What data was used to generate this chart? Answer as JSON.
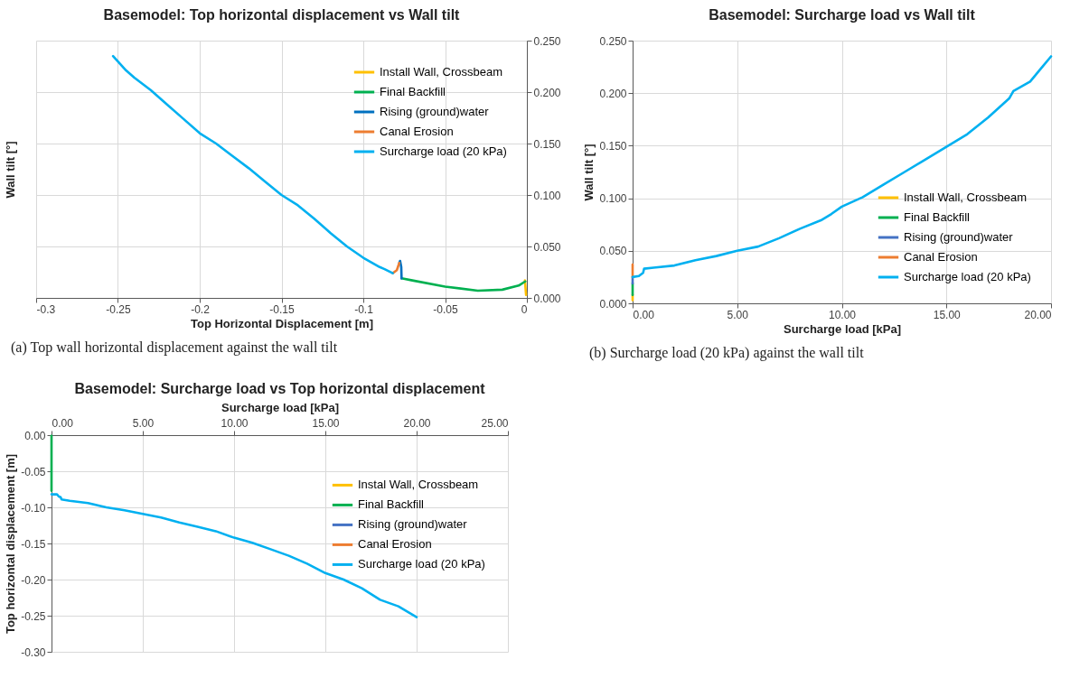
{
  "chart_data": [
    {
      "type": "line",
      "title": "Basemodel: Top horizontal displacement vs Wall tilt",
      "xlabel": "Top Horizontal Displacement  [m]",
      "y2label": "Wall tilt [°]",
      "xlim": [
        -0.3,
        0
      ],
      "xticks": [
        -0.3,
        -0.25,
        -0.2,
        -0.15,
        -0.1,
        -0.05,
        0
      ],
      "y2lim": [
        0,
        0.25
      ],
      "y2ticks": [
        {
          "value": 0,
          "label": "0.000"
        },
        {
          "value": 0.05,
          "label": "0.050"
        },
        {
          "value": 0.1,
          "label": "0.100"
        },
        {
          "value": 0.15,
          "label": "0.150"
        },
        {
          "value": 0.2,
          "label": "0.200"
        },
        {
          "value": 0.25,
          "label": "0.250"
        }
      ],
      "grid": true,
      "legend": "top right",
      "annotations": [
        "(a) Top wall horizontal displacement against the wall tilt"
      ],
      "series": [
        {
          "name": "Install Wall, Crossbeam",
          "color": "#ffc000",
          "axis": "y2",
          "x": [
            -0.0005,
            -0.0012,
            -0.001
          ],
          "values": [
            0.003,
            0.017,
            0.016
          ]
        },
        {
          "name": "Final Backfill",
          "color": "#00b050",
          "axis": "y2",
          "x": [
            -0.001,
            -0.005,
            -0.015,
            -0.03,
            -0.05,
            -0.07,
            -0.0766
          ],
          "values": [
            0.016,
            0.012,
            0.008,
            0.007,
            0.011,
            0.017,
            0.019
          ]
        },
        {
          "name": "Rising (ground)water",
          "color": "#0070c0",
          "axis": "y2",
          "x": [
            -0.0766,
            -0.0768,
            -0.0775,
            -0.078
          ],
          "values": [
            0.019,
            0.03,
            0.036,
            0.034
          ]
        },
        {
          "name": "Canal Erosion",
          "color": "#ed7d31",
          "axis": "y2",
          "x": [
            -0.078,
            -0.0795,
            -0.082
          ],
          "values": [
            0.034,
            0.027,
            0.024
          ]
        },
        {
          "name": "Surcharge load (20 kPa)",
          "color": "#00b0f0",
          "axis": "y2",
          "x": [
            -0.082,
            -0.087,
            -0.09,
            -0.1,
            -0.11,
            -0.12,
            -0.13,
            -0.14,
            -0.15,
            -0.16,
            -0.17,
            -0.18,
            -0.19,
            -0.2,
            -0.21,
            -0.22,
            -0.23,
            -0.24,
            -0.245,
            -0.253
          ],
          "values": [
            0.024,
            0.028,
            0.03,
            0.039,
            0.05,
            0.063,
            0.077,
            0.09,
            0.1,
            0.113,
            0.126,
            0.138,
            0.15,
            0.16,
            0.174,
            0.188,
            0.202,
            0.214,
            0.221,
            0.235
          ]
        }
      ]
    },
    {
      "type": "line",
      "title": "Basemodel: Surcharge load vs Wall tilt",
      "xlabel": "Surcharge load [kPa]",
      "ylabel": "Wall tilt [°]",
      "xlim": [
        0,
        20
      ],
      "xticks": [
        {
          "value": 0,
          "label": "0.00"
        },
        {
          "value": 5,
          "label": "5.00"
        },
        {
          "value": 10,
          "label": "10.00"
        },
        {
          "value": 15,
          "label": "15.00"
        },
        {
          "value": 20,
          "label": "20.00"
        }
      ],
      "ylim": [
        0,
        0.25
      ],
      "yticks": [
        {
          "value": 0,
          "label": "0.000"
        },
        {
          "value": 0.05,
          "label": "0.050"
        },
        {
          "value": 0.1,
          "label": "0.100"
        },
        {
          "value": 0.15,
          "label": "0.150"
        },
        {
          "value": 0.2,
          "label": "0.200"
        },
        {
          "value": 0.25,
          "label": "0.250"
        }
      ],
      "grid": true,
      "legend": "bottom right",
      "annotations": [
        "(b) Surcharge load (20 kPa) against the wall tilt"
      ],
      "series": [
        {
          "name": "Install Wall, Crossbeam",
          "color": "#ffc000",
          "x": [
            0,
            0
          ],
          "values": [
            0.003,
            0.008
          ]
        },
        {
          "name": "Final Backfill",
          "color": "#00b050",
          "x": [
            0,
            0
          ],
          "values": [
            0.008,
            0.019
          ]
        },
        {
          "name": "Rising (ground)water",
          "color": "#4472c4",
          "x": [
            0,
            0
          ],
          "values": [
            0.019,
            0.025
          ]
        },
        {
          "name": "Canal Erosion",
          "color": "#ed7d31",
          "x": [
            0,
            0
          ],
          "values": [
            0.025,
            0.037
          ]
        },
        {
          "name": "Surcharge load (20 kPa)",
          "color": "#00b0f0",
          "x": [
            0,
            0.3,
            0.5,
            0.55,
            1,
            2,
            3,
            4,
            5,
            6,
            7,
            8,
            9,
            9.5,
            10,
            11,
            12,
            13,
            14,
            15,
            16,
            17,
            18,
            18.2,
            19,
            19.5,
            20
          ],
          "values": [
            0.025,
            0.026,
            0.029,
            0.033,
            0.034,
            0.036,
            0.041,
            0.045,
            0.05,
            0.054,
            0.062,
            0.071,
            0.079,
            0.085,
            0.092,
            0.101,
            0.113,
            0.125,
            0.137,
            0.149,
            0.161,
            0.177,
            0.195,
            0.202,
            0.211,
            0.223,
            0.235
          ]
        }
      ]
    },
    {
      "type": "line",
      "title": "Basemodel: Surcharge load vs Top horizontal displacement",
      "xlabel": "Surcharge load [kPa]",
      "ylabel": "Top horizontal displacement [m]",
      "xlim": [
        0,
        25
      ],
      "xticks": [
        {
          "value": 0,
          "label": "0.00"
        },
        {
          "value": 5,
          "label": "5.00"
        },
        {
          "value": 10,
          "label": "10.00"
        },
        {
          "value": 15,
          "label": "15.00"
        },
        {
          "value": 20,
          "label": "20.00"
        },
        {
          "value": 25,
          "label": "25.00"
        }
      ],
      "ylim": [
        -0.3,
        0
      ],
      "yticks": [
        {
          "value": 0,
          "label": "0.00"
        },
        {
          "value": -0.05,
          "label": "-0.05"
        },
        {
          "value": -0.1,
          "label": "-0.10"
        },
        {
          "value": -0.15,
          "label": "-0.15"
        },
        {
          "value": -0.2,
          "label": "-0.20"
        },
        {
          "value": -0.25,
          "label": "-0.25"
        },
        {
          "value": -0.3,
          "label": "-0.30"
        }
      ],
      "grid": true,
      "legend": "right",
      "series": [
        {
          "name": "Instal Wall, Crossbeam",
          "color": "#ffc000"
        },
        {
          "name": "Final Backfill",
          "color": "#00b050",
          "x": [
            0,
            0
          ],
          "values": [
            -0.001,
            -0.077
          ]
        },
        {
          "name": "Rising (ground)water",
          "color": "#4472c4"
        },
        {
          "name": "Canal Erosion",
          "color": "#ed7d31"
        },
        {
          "name": "Surcharge load (20 kPa)",
          "color": "#00b0f0",
          "x": [
            0,
            0.3,
            0.4,
            0.5,
            0.55,
            1,
            2,
            3,
            4,
            5,
            6,
            7,
            8,
            9,
            10,
            11,
            12,
            13,
            14,
            15,
            16,
            17,
            18,
            19,
            20
          ],
          "values": [
            -0.082,
            -0.082,
            -0.085,
            -0.086,
            -0.089,
            -0.091,
            -0.094,
            -0.1,
            -0.104,
            -0.109,
            -0.114,
            -0.121,
            -0.127,
            -0.133,
            -0.142,
            -0.149,
            -0.158,
            -0.167,
            -0.178,
            -0.191,
            -0.2,
            -0.212,
            -0.228,
            -0.237,
            -0.252
          ]
        }
      ]
    }
  ]
}
